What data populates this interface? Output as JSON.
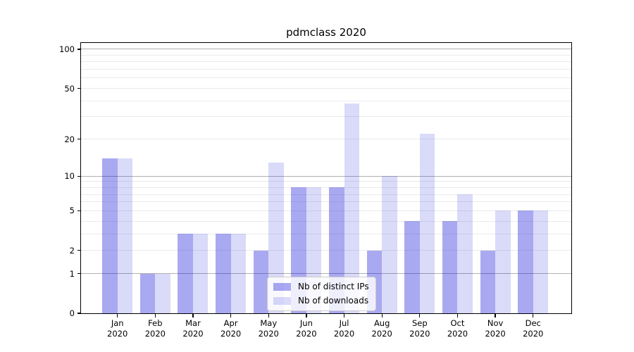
{
  "chart_data": {
    "type": "bar",
    "title": "pdmclass 2020",
    "categories": [
      "Jan",
      "Feb",
      "Mar",
      "Apr",
      "May",
      "Jun",
      "Jul",
      "Aug",
      "Sep",
      "Oct",
      "Nov",
      "Dec"
    ],
    "x_tick_line2": "2020",
    "series": [
      {
        "name": "Nb of distinct IPs",
        "color": "#0a0ad8",
        "opacity": 0.35,
        "values": [
          14,
          1,
          3,
          3,
          2,
          8,
          8,
          2,
          4,
          4,
          2,
          5
        ]
      },
      {
        "name": "Nb of downloads",
        "color": "#0a0ad8",
        "opacity": 0.15,
        "values": [
          14,
          1,
          3,
          3,
          13,
          8,
          38,
          10,
          22,
          7,
          5,
          5
        ]
      }
    ],
    "y_axis": {
      "scale": "log10(value+1)",
      "ticks": [
        0,
        1,
        2,
        5,
        10,
        20,
        50,
        100
      ],
      "major_gridlines": [
        1,
        10,
        100
      ],
      "minor_gridlines": [
        2,
        3,
        4,
        5,
        6,
        7,
        8,
        9,
        20,
        30,
        40,
        50,
        60,
        70,
        80,
        90
      ],
      "ylim": [
        0,
        112
      ]
    },
    "xlabel": "",
    "ylabel": "",
    "grid": true,
    "legend": {
      "location": "lower center",
      "items": [
        "Nb of distinct IPs",
        "Nb of downloads"
      ]
    },
    "colors": {
      "major_grid": "#b0b0b0",
      "minor_grid": "#ebebeb",
      "spine": "#000000",
      "text": "#000000",
      "legend_border": "#cccccc"
    }
  }
}
